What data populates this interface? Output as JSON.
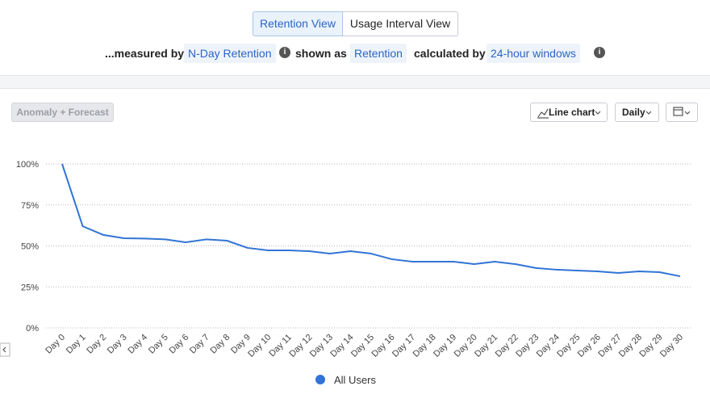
{
  "toolbar": {
    "views": [
      "Retention View",
      "Usage Interval View"
    ],
    "measured_by_label": "...measured by",
    "measured_by": "N-Day Retention",
    "shown_as_label": "shown as",
    "shown_as": "Retention",
    "calculated_by_label": "calculated by",
    "calculated_by": "24-hour windows",
    "anomaly_button": "Anomaly + Forecast",
    "chart_type": "Line chart",
    "interval": "Daily"
  },
  "chart_data": {
    "type": "line",
    "categories": [
      "Day 0",
      "Day 1",
      "Day 2",
      "Day 3",
      "Day 4",
      "Day 5",
      "Day 6",
      "Day 7",
      "Day 8",
      "Day 9",
      "Day 10",
      "Day 11",
      "Day 12",
      "Day 13",
      "Day 14",
      "Day 15",
      "Day 16",
      "Day 17",
      "Day 18",
      "Day 19",
      "Day 20",
      "Day 21",
      "Day 22",
      "Day 23",
      "Day 24",
      "Day 25",
      "Day 26",
      "Day 27",
      "Day 28",
      "Day 29",
      "Day 30"
    ],
    "series": [
      {
        "name": "All Users",
        "color": "#3274d6",
        "values": [
          100,
          62,
          56.7,
          54.7,
          54.5,
          54,
          52.2,
          54,
          53.2,
          48.8,
          47.3,
          47.3,
          46.8,
          45.3,
          46.8,
          45.3,
          41.9,
          40.4,
          40.4,
          40.4,
          38.9,
          40.4,
          38.9,
          36.5,
          35.5,
          35,
          34.5,
          33.5,
          34.5,
          34,
          31.5
        ]
      }
    ],
    "ylim": [
      0,
      100
    ],
    "yticks": [
      {
        "value": 0,
        "label": "0%"
      },
      {
        "value": 25,
        "label": "25%"
      },
      {
        "value": 50,
        "label": "50%"
      },
      {
        "value": 75,
        "label": "75%"
      },
      {
        "value": 100,
        "label": "100%"
      }
    ],
    "grid": true
  }
}
